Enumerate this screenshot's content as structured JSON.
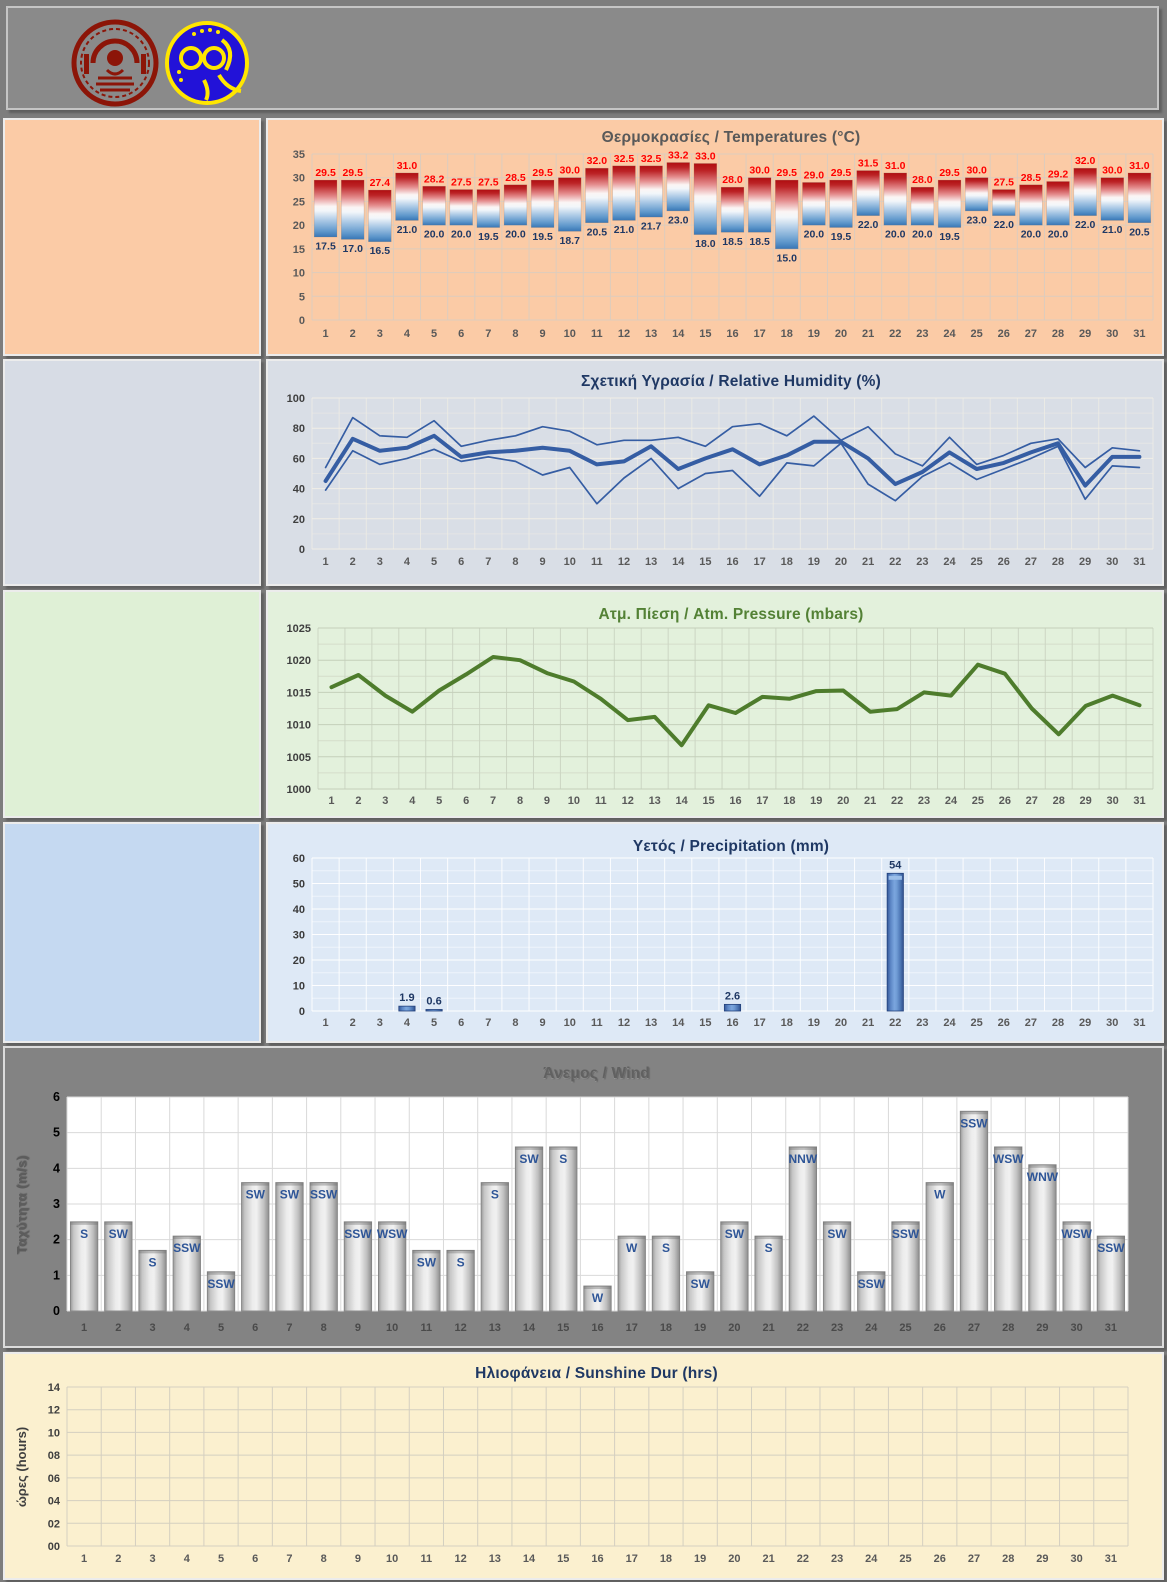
{
  "header": {
    "logo_left": "university-seal",
    "logo_right": "swimming-club-emblem",
    "logo_red_color": "#8c1508",
    "logo_blue_color": "#2212d8",
    "logo_yellow_color": "#ffe600"
  },
  "chart_data": [
    {
      "id": "temperature",
      "type": "floating-bar",
      "title": "Θερμοκρασίες / Temperatures (°C)",
      "title_color": "#595959",
      "panel_bg": "#fbcba6",
      "side_bg": "#fbcba6",
      "categories": [
        1,
        2,
        3,
        4,
        5,
        6,
        7,
        8,
        9,
        10,
        11,
        12,
        13,
        14,
        15,
        16,
        17,
        18,
        19,
        20,
        21,
        22,
        23,
        24,
        25,
        26,
        27,
        28,
        29,
        30,
        31
      ],
      "series": [
        {
          "name": "max",
          "color": "#ff0000",
          "values": [
            29.5,
            29.5,
            27.4,
            31.0,
            28.2,
            27.5,
            27.5,
            28.5,
            29.5,
            30.0,
            32.0,
            32.5,
            32.5,
            33.2,
            33.0,
            28.0,
            30.0,
            29.5,
            29.0,
            29.5,
            31.5,
            31.0,
            28.0,
            29.5,
            30.0,
            27.5,
            28.5,
            29.2,
            32.0,
            30.0,
            31.0
          ]
        },
        {
          "name": "min",
          "color": "#1f3864",
          "values": [
            17.5,
            17.0,
            16.5,
            21.0,
            20.0,
            20.0,
            19.5,
            20.0,
            19.5,
            18.7,
            20.5,
            21.0,
            21.7,
            23.0,
            18.0,
            18.5,
            18.5,
            15.0,
            20.0,
            19.5,
            22.0,
            20.0,
            20.0,
            19.5,
            23.0,
            22.0,
            20.0,
            20.0,
            22.0,
            21.0,
            20.5
          ]
        }
      ],
      "ylim": [
        0,
        35
      ],
      "ytick": 5,
      "grid": true,
      "legend": "none"
    },
    {
      "id": "humidity",
      "type": "line",
      "title": "Σχετική Υγρασία / Relative Humidity (%)",
      "title_color": "#1f3864",
      "panel_bg": "#d9dee6",
      "side_bg": "#d7dce5",
      "line_color": "#355da3",
      "categories": [
        1,
        2,
        3,
        4,
        5,
        6,
        7,
        8,
        9,
        10,
        11,
        12,
        13,
        14,
        15,
        16,
        17,
        18,
        19,
        20,
        21,
        22,
        23,
        24,
        25,
        26,
        27,
        28,
        29,
        30,
        31
      ],
      "series": [
        {
          "name": "max",
          "emphasis": false,
          "values": [
            54,
            87,
            75,
            74,
            85,
            68,
            72,
            75,
            81,
            78,
            69,
            72,
            72,
            74,
            68,
            81,
            83,
            75,
            88,
            72,
            81,
            63,
            55,
            74,
            56,
            62,
            70,
            73,
            54,
            67,
            65
          ]
        },
        {
          "name": "mean",
          "emphasis": true,
          "values": [
            45,
            73,
            65,
            67,
            75,
            61,
            64,
            65,
            67,
            65,
            56,
            58,
            68,
            53,
            60,
            66,
            56,
            62,
            71,
            71,
            60,
            43,
            51,
            64,
            53,
            57,
            64,
            70,
            42,
            61,
            61
          ]
        },
        {
          "name": "min",
          "emphasis": false,
          "values": [
            39,
            65,
            56,
            60,
            66,
            58,
            61,
            58,
            49,
            54,
            30,
            47,
            60,
            40,
            50,
            52,
            35,
            57,
            55,
            70,
            43,
            32,
            48,
            57,
            46,
            53,
            60,
            68,
            33,
            55,
            54
          ]
        }
      ],
      "ylim": [
        0,
        100
      ],
      "ytick": 20,
      "ytick_minor": 10,
      "grid": true,
      "legend": "none"
    },
    {
      "id": "pressure",
      "type": "line",
      "title": "Ατμ. Πίεση / Atm. Pressure (mbars)",
      "title_color": "#538135",
      "panel_bg": "#e3f1dc",
      "side_bg": "#dff0d6",
      "line_color": "#4e7c2c",
      "categories": [
        1,
        2,
        3,
        4,
        5,
        6,
        7,
        8,
        9,
        10,
        11,
        12,
        13,
        14,
        15,
        16,
        17,
        18,
        19,
        20,
        21,
        22,
        23,
        24,
        25,
        26,
        27,
        28,
        29,
        30,
        31
      ],
      "series": [
        {
          "name": "pressure",
          "emphasis": true,
          "values": [
            1015.8,
            1017.7,
            1014.5,
            1012.0,
            1015.3,
            1017.8,
            1020.5,
            1020.0,
            1018.0,
            1016.7,
            1014.0,
            1010.7,
            1011.2,
            1006.8,
            1013.0,
            1011.8,
            1014.3,
            1014.0,
            1015.2,
            1015.3,
            1012.0,
            1012.4,
            1015.0,
            1014.5,
            1019.3,
            1017.9,
            1012.5,
            1008.5,
            1012.9,
            1014.5,
            1013.0
          ]
        }
      ],
      "ylim": [
        1000,
        1025
      ],
      "ytick": 5,
      "ytick_minor": 2.5,
      "grid": true,
      "legend": "none"
    },
    {
      "id": "precipitation",
      "type": "bar",
      "title": "Υετός / Precipitation (mm)",
      "title_color": "#1f3864",
      "panel_bg": "#dee9f6",
      "side_bg": "#c5d9f1",
      "bar_color": "#4472c4",
      "label_color": "#1f3864",
      "categories": [
        1,
        2,
        3,
        4,
        5,
        6,
        7,
        8,
        9,
        10,
        11,
        12,
        13,
        14,
        15,
        16,
        17,
        18,
        19,
        20,
        21,
        22,
        23,
        24,
        25,
        26,
        27,
        28,
        29,
        30,
        31
      ],
      "values": [
        0,
        0,
        0,
        1.9,
        0.6,
        0,
        0,
        0,
        0,
        0,
        0,
        0,
        0,
        0,
        0,
        2.6,
        0,
        0,
        0,
        0,
        0,
        54,
        0,
        0,
        0,
        0,
        0,
        0,
        0,
        0,
        0
      ],
      "labels": [
        "",
        "",
        "",
        "1.9",
        "0.6",
        "",
        "",
        "",
        "",
        "",
        "",
        "",
        "",
        "",
        "",
        "2.6",
        "",
        "",
        "",
        "",
        "",
        "54",
        "",
        "",
        "",
        "",
        "",
        "",
        "",
        "",
        ""
      ],
      "ylim": [
        0,
        60
      ],
      "ytick": 10,
      "ytick_minor": 5,
      "grid": true,
      "legend": "none"
    },
    {
      "id": "wind",
      "type": "bar",
      "title": "Άνεμος / Wind",
      "title_color": "#616161",
      "ylabel": "Ταχύτητα (m/s)",
      "panel_bg": "#838383",
      "plot_bg": "#ffffff",
      "bar_label_color": "#2e5597",
      "categories": [
        1,
        2,
        3,
        4,
        5,
        6,
        7,
        8,
        9,
        10,
        11,
        12,
        13,
        14,
        15,
        16,
        17,
        18,
        19,
        20,
        21,
        22,
        23,
        24,
        25,
        26,
        27,
        28,
        29,
        30,
        31
      ],
      "values": [
        2.5,
        2.5,
        1.7,
        2.1,
        1.1,
        3.6,
        3.6,
        3.6,
        2.5,
        2.5,
        1.7,
        1.7,
        3.6,
        4.6,
        4.6,
        0.7,
        2.1,
        2.1,
        1.1,
        2.5,
        2.1,
        4.6,
        2.5,
        1.1,
        2.5,
        3.6,
        5.6,
        4.6,
        4.1,
        2.5,
        2.1
      ],
      "bar_labels": [
        "S",
        "SW",
        "S",
        "SSW",
        "SSW",
        "SW",
        "SW",
        "SSW",
        "SSW",
        "WSW",
        "SW",
        "S",
        "S",
        "SW",
        "S",
        "W",
        "W",
        "S",
        "SW",
        "SW",
        "S",
        "NNW",
        "SW",
        "SSW",
        "SSW",
        "W",
        "SSW",
        "WSW",
        "WNW",
        "WSW",
        "SSW"
      ],
      "ylim": [
        0,
        6
      ],
      "ytick": 1,
      "grid": true,
      "legend": "none"
    },
    {
      "id": "sunshine",
      "type": "bar",
      "title": "Ηλιοφάνεια / Sunshine Dur (hrs)",
      "title_color": "#1f3864",
      "ylabel": "ώρες (hours)",
      "panel_bg": "#fbf0cf",
      "categories": [
        1,
        2,
        3,
        4,
        5,
        6,
        7,
        8,
        9,
        10,
        11,
        12,
        13,
        14,
        15,
        16,
        17,
        18,
        19,
        20,
        21,
        22,
        23,
        24,
        25,
        26,
        27,
        28,
        29,
        30,
        31
      ],
      "values": [
        0,
        0,
        0,
        0,
        0,
        0,
        0,
        0,
        0,
        0,
        0,
        0,
        0,
        0,
        0,
        0,
        0,
        0,
        0,
        0,
        0,
        0,
        0,
        0,
        0,
        0,
        0,
        0,
        0,
        0,
        0
      ],
      "ylim": [
        0,
        14
      ],
      "ytick": 2,
      "ytick_labels": [
        "00",
        "02",
        "04",
        "06",
        "08",
        "10",
        "12",
        "14"
      ],
      "grid": true,
      "legend": "none"
    }
  ]
}
